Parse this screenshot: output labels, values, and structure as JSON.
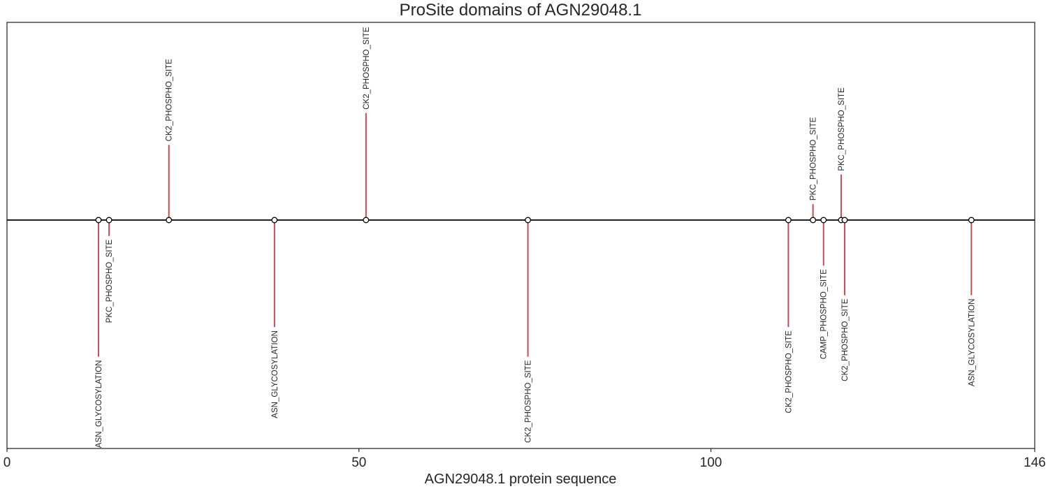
{
  "chart_data": {
    "type": "lollipop",
    "title": "ProSite domains of AGN29048.1",
    "xlabel": "AGN29048.1 protein sequence",
    "xlim": [
      0,
      146
    ],
    "xticks": [
      0,
      50,
      100,
      146
    ],
    "ylim": [
      -1.0,
      1.0
    ],
    "grid": false,
    "baseline": 0,
    "colors": {
      "stem": "#c44e52",
      "baseline": "#000000",
      "marker_fill": "#ffffff",
      "marker_edge": "#000000"
    },
    "sites": [
      {
        "position": 13,
        "label": "ASN_GLYCOSYLATION",
        "height": -0.6
      },
      {
        "position": 14.5,
        "label": "PKC_PHOSPHO_SITE",
        "height": -0.07
      },
      {
        "position": 23,
        "label": "CK2_PHOSPHO_SITE",
        "height": 0.33
      },
      {
        "position": 38,
        "label": "ASN_GLYCOSYLATION",
        "height": -0.47
      },
      {
        "position": 51,
        "label": "CK2_PHOSPHO_SITE",
        "height": 0.47
      },
      {
        "position": 74,
        "label": "CK2_PHOSPHO_SITE",
        "height": -0.6
      },
      {
        "position": 111,
        "label": "CK2_PHOSPHO_SITE",
        "height": -0.47
      },
      {
        "position": 114.5,
        "label": "PKC_PHOSPHO_SITE",
        "height": 0.07
      },
      {
        "position": 116,
        "label": "CAMP_PHOSPHO_SITE",
        "height": -0.2
      },
      {
        "position": 118.5,
        "label": "PKC_PHOSPHO_SITE",
        "height": 0.2
      },
      {
        "position": 119,
        "label": "CK2_PHOSPHO_SITE",
        "height": -0.33
      },
      {
        "position": 137,
        "label": "ASN_GLYCOSYLATION",
        "height": -0.33
      }
    ]
  }
}
